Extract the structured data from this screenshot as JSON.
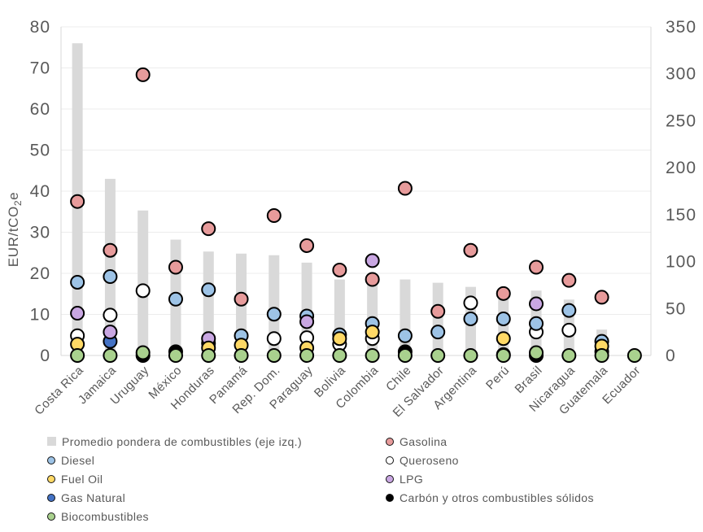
{
  "page": {
    "background": "#FFFFFF"
  },
  "chart_data": {
    "type": "combo bar + scatter, dual axis",
    "title": "",
    "left_axis": {
      "label": "EUR/tCO₂e",
      "min": 0,
      "max": 80,
      "step": 10,
      "applies_to": "bars"
    },
    "right_axis": {
      "label": "",
      "min": 0,
      "max": 350,
      "step": 50,
      "applies_to": "dots"
    },
    "grid": "horizontal gridlines every 10 left-axis units",
    "legend_position": "bottom, two columns",
    "categories": [
      "Costa Rica",
      "Jamaica",
      "Uruguay",
      "México",
      "Honduras",
      "Panamá",
      "Rep. Dom.",
      "Paraguay",
      "Bolivia",
      "Colombia",
      "Chile",
      "El Salvador",
      "Argentina",
      "Perú",
      "Brasil",
      "Nicaragua",
      "Guatemala",
      "Ecuador"
    ],
    "bar_series": {
      "id": "promedio",
      "name": "Promedio pondera de combustibles (eje izq.)",
      "axis": "left",
      "color": "#D9D9D9",
      "values": [
        76,
        43,
        35.3,
        28.2,
        25.3,
        24.8,
        24.4,
        22.6,
        18.5,
        19.3,
        18.5,
        17.7,
        16.7,
        16.4,
        15.8,
        13.6,
        6.3,
        0
      ]
    },
    "scatter_series": [
      {
        "id": "gasolina",
        "name": "Gasolina",
        "axis": "right",
        "color": "#E79B9B",
        "values": [
          164,
          112,
          299,
          94,
          135,
          60,
          149,
          117,
          91,
          81,
          178,
          47,
          112,
          66,
          94,
          80,
          62,
          null
        ]
      },
      {
        "id": "queroseno",
        "name": "Queroseno",
        "axis": "right",
        "color": "#FFFFFF",
        "values": [
          21,
          43,
          69,
          null,
          13,
          null,
          18,
          19,
          12,
          18,
          null,
          null,
          56,
          null,
          25,
          27,
          null,
          null
        ]
      },
      {
        "id": "diesel",
        "name": "Diesel",
        "axis": "right",
        "color": "#9DC3E6",
        "values": [
          78,
          84,
          null,
          60,
          70,
          21,
          44,
          42,
          22,
          34,
          21,
          25,
          39,
          39,
          34,
          48,
          15,
          null
        ]
      },
      {
        "id": "gas-natural",
        "name": "Gas Natural",
        "axis": "right",
        "color": "#4472C4",
        "values": [
          null,
          15,
          null,
          null,
          null,
          null,
          null,
          null,
          null,
          null,
          null,
          null,
          null,
          null,
          null,
          null,
          null,
          null
        ]
      },
      {
        "id": "carbon",
        "name": "Carbón y otros combustibles sólidos",
        "axis": "right",
        "color": "#000000",
        "values": [
          null,
          null,
          0,
          4,
          null,
          null,
          null,
          null,
          null,
          null,
          4,
          null,
          null,
          1,
          0,
          null,
          null,
          null
        ]
      },
      {
        "id": "lpg",
        "name": "LPG",
        "axis": "right",
        "color": "#C9A7E2",
        "values": [
          45,
          25,
          null,
          null,
          18,
          null,
          null,
          36,
          null,
          101,
          null,
          null,
          null,
          null,
          55,
          null,
          4,
          null
        ]
      },
      {
        "id": "fuel-oil",
        "name": "Fuel Oil",
        "axis": "right",
        "color": "#FFD966",
        "values": [
          12,
          null,
          null,
          null,
          8,
          11,
          null,
          8,
          18,
          25,
          null,
          null,
          null,
          18,
          null,
          null,
          10,
          null
        ]
      },
      {
        "id": "biocombustibles",
        "name": "Biocombustibles",
        "axis": "right",
        "color": "#A9D18E",
        "values": [
          0,
          0,
          3,
          0,
          0,
          0,
          0,
          0,
          0,
          0,
          0,
          0,
          0,
          0,
          3,
          0,
          0,
          0
        ]
      }
    ],
    "legend": {
      "columns": [
        [
          "promedio",
          "diesel",
          "fuel-oil",
          "gas-natural",
          "biocombustibles"
        ],
        [
          "gasolina",
          "queroseno",
          "lpg",
          "carbon"
        ]
      ]
    },
    "colors": {
      "text": "#595959",
      "gridline": "#ECECEC",
      "plot_border": "#D9D9D9",
      "dot_outline": "#000000"
    }
  }
}
